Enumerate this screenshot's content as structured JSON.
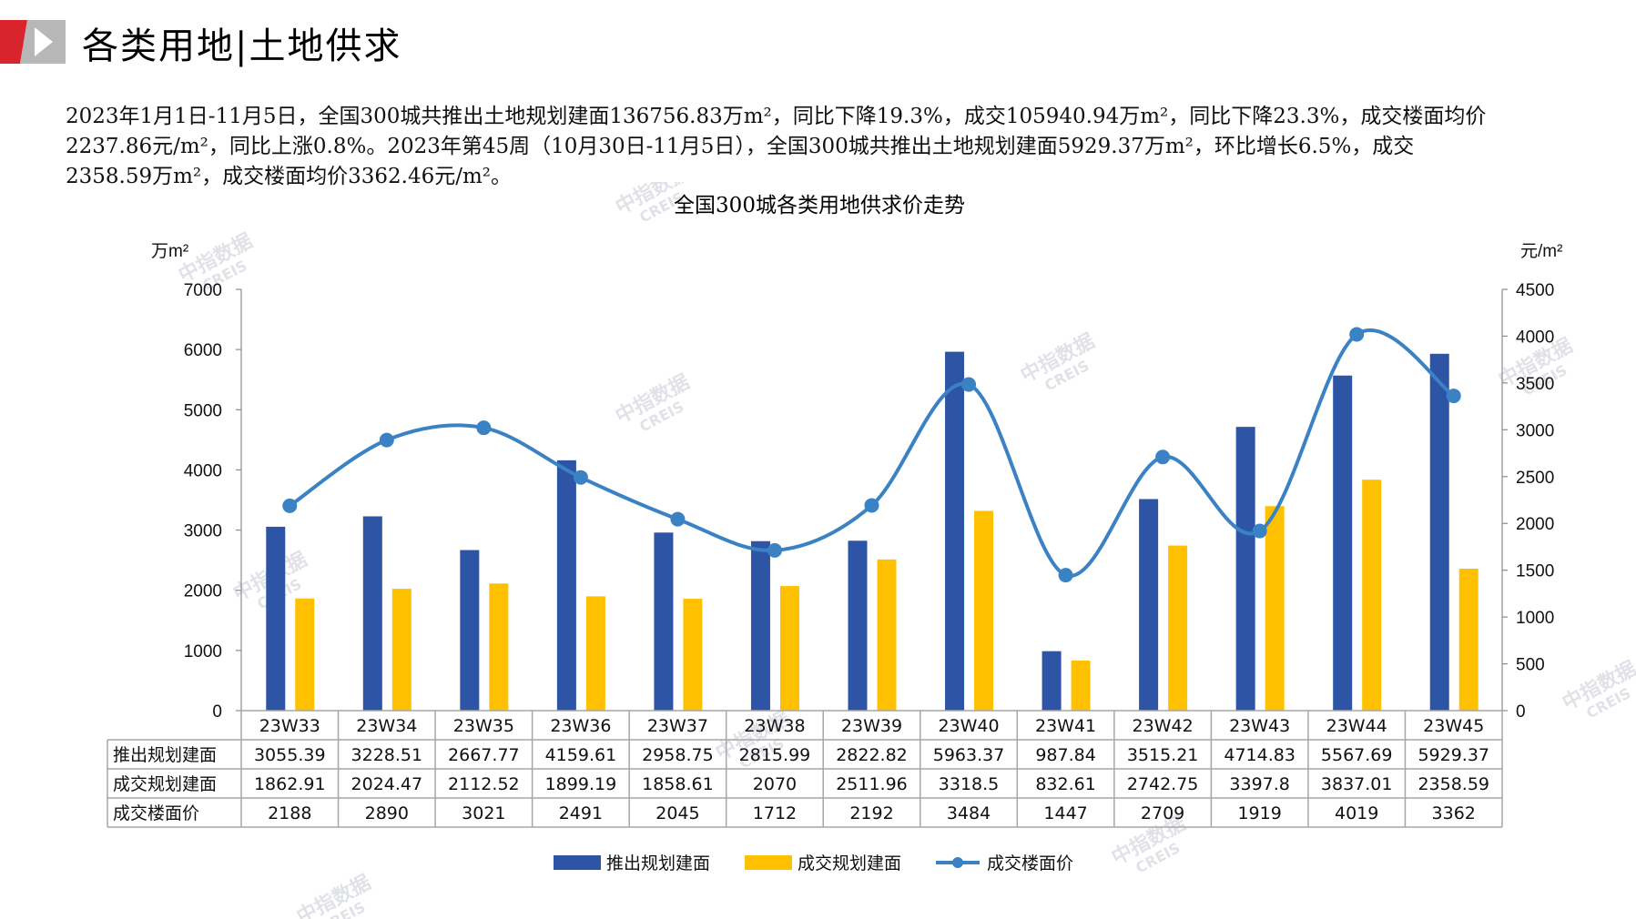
{
  "page": {
    "title": "各类用地|土地供求",
    "summary_lines": [
      "2023年1月1日-11月5日，全国300城共推出土地规划建面136756.83万m²，同比下降19.3%，成交105940.94万m²，同比下降23.3%，成交楼面均价",
      "2237.86元/m²，同比上涨0.8%。2023年第45周（10月30日-11月5日），全国300城共推出土地规划建面5929.37万m²，环比增长6.5%，成交",
      "2358.59万m²，成交楼面均价3362.46元/m²。"
    ],
    "watermark": [
      "中指数据",
      "CREIS"
    ]
  },
  "colors": {
    "supply_bar": "#2e55a5",
    "deal_bar": "#ffc000",
    "price_line": "#3a82c4",
    "table_border": "#a6a6a6",
    "logo_red": "#d9232d",
    "logo_gray": "#b7b7b7"
  },
  "chart_data": {
    "type": "bar",
    "title": "全国300城各类用地供求价走势",
    "y_left_unit": "万m²",
    "y_right_unit": "元/m²",
    "y_left_lim": [
      0,
      7000
    ],
    "y_left_ticks": [
      0,
      1000,
      2000,
      3000,
      4000,
      5000,
      6000,
      7000
    ],
    "y_right_lim": [
      0,
      4500
    ],
    "y_right_ticks": [
      0,
      500,
      1000,
      1500,
      2000,
      2500,
      3000,
      3500,
      4000,
      4500
    ],
    "grid": false,
    "legend_position": "bottom",
    "categories": [
      "23W33",
      "23W34",
      "23W35",
      "23W36",
      "23W37",
      "23W38",
      "23W39",
      "23W40",
      "23W41",
      "23W42",
      "23W43",
      "23W44",
      "23W45"
    ],
    "series": [
      {
        "name": "推出规划建面",
        "type": "bar",
        "axis": "left",
        "values": [
          3055.39,
          3228.51,
          2667.77,
          4159.61,
          2958.75,
          2815.99,
          2822.82,
          5963.37,
          987.84,
          3515.21,
          4714.83,
          5567.69,
          5929.37
        ],
        "labels": [
          "3055.39",
          "3228.51",
          "2667.77",
          "4159.61",
          "2958.75",
          "2815.99",
          "2822.82",
          "5963.37",
          "987.84",
          "3515.21",
          "4714.83",
          "5567.69",
          "5929.37"
        ]
      },
      {
        "name": "成交规划建面",
        "type": "bar",
        "axis": "left",
        "values": [
          1862.91,
          2024.47,
          2112.52,
          1899.19,
          1858.61,
          2070,
          2511.96,
          3318.5,
          832.61,
          2742.75,
          3397.8,
          3837.01,
          2358.59
        ],
        "labels": [
          "1862.91",
          "2024.47",
          "2112.52",
          "1899.19",
          "1858.61",
          "2070",
          "2511.96",
          "3318.5",
          "832.61",
          "2742.75",
          "3397.8",
          "3837.01",
          "2358.59"
        ]
      },
      {
        "name": "成交楼面价",
        "type": "line",
        "axis": "right",
        "values": [
          2188,
          2890,
          3021,
          2491,
          2045,
          1712,
          2192,
          3484,
          1447,
          2709,
          1919,
          4019,
          3362
        ],
        "labels": [
          "2188",
          "2890",
          "3021",
          "2491",
          "2045",
          "1712",
          "2192",
          "3484",
          "1447",
          "2709",
          "1919",
          "4019",
          "3362"
        ]
      }
    ]
  }
}
